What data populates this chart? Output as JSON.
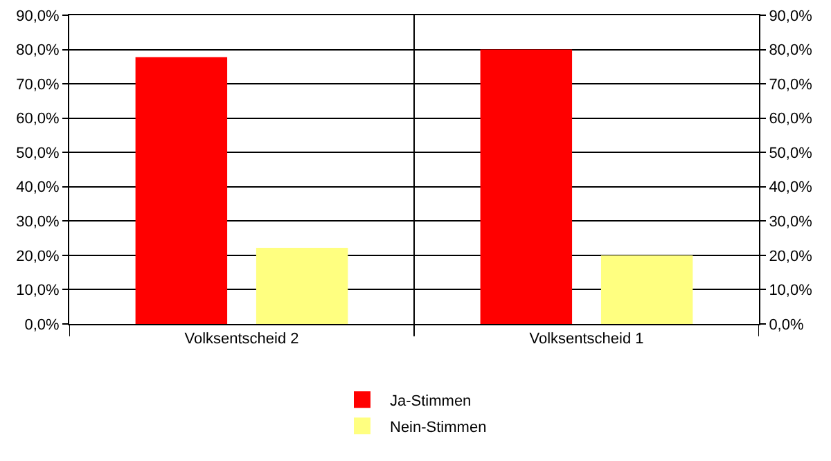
{
  "chart_data": {
    "type": "bar",
    "categories": [
      "Volksentscheid 2",
      "Volksentscheid 1"
    ],
    "series": [
      {
        "name": "Ja-Stimmen",
        "color": "#ff0000",
        "values": [
          77.8,
          80.0
        ]
      },
      {
        "name": "Nein-Stimmen",
        "color": "#ffff80",
        "values": [
          22.2,
          20.0
        ]
      }
    ],
    "ylim": [
      0,
      90
    ],
    "yticks": [
      {
        "value": 0,
        "label": "0,0%"
      },
      {
        "value": 10,
        "label": "10,0%"
      },
      {
        "value": 20,
        "label": "20,0%"
      },
      {
        "value": 30,
        "label": "30,0%"
      },
      {
        "value": 40,
        "label": "40,0%"
      },
      {
        "value": 50,
        "label": "50,0%"
      },
      {
        "value": 60,
        "label": "60,0%"
      },
      {
        "value": 70,
        "label": "70,0%"
      },
      {
        "value": 80,
        "label": "80,0%"
      },
      {
        "value": 90,
        "label": "90,0%"
      }
    ],
    "y2lim": [
      0,
      90
    ],
    "y2ticks": [
      {
        "value": 0,
        "label": "0,0%"
      },
      {
        "value": 10,
        "label": "10,0%"
      },
      {
        "value": 20,
        "label": "20,0%"
      },
      {
        "value": 30,
        "label": "30,0%"
      },
      {
        "value": 40,
        "label": "40,0%"
      },
      {
        "value": 50,
        "label": "50,0%"
      },
      {
        "value": 60,
        "label": "60,0%"
      },
      {
        "value": 70,
        "label": "70,0%"
      },
      {
        "value": 80,
        "label": "80,0%"
      },
      {
        "value": 90,
        "label": "90,0%"
      }
    ],
    "grid": true,
    "legend": "bottom"
  }
}
